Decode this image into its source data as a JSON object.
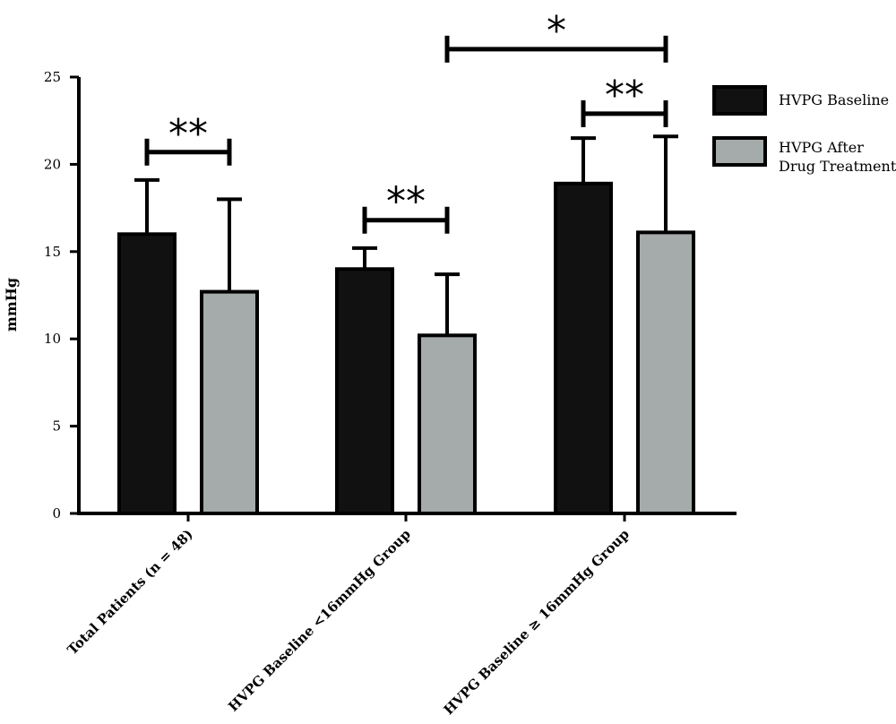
{
  "chart_data": {
    "type": "bar",
    "title": "",
    "xlabel": "",
    "ylabel": "mmHg",
    "ylim": [
      0,
      25
    ],
    "yticks": [
      0,
      5,
      10,
      15,
      20,
      25
    ],
    "categories": [
      "Total Patients (n = 48)",
      "HVPG Baseline <16mmHg Group",
      "HVPG Baseline ≥ 16mmHg Group"
    ],
    "series": [
      {
        "name": "HVPG Baseline",
        "values": [
          16.0,
          14.0,
          18.9
        ],
        "error": [
          3.1,
          1.2,
          2.6
        ],
        "color": "#111111"
      },
      {
        "name": "HVPG After Drug Treatment",
        "values": [
          12.7,
          10.2,
          16.1
        ],
        "error": [
          5.3,
          3.5,
          5.5
        ],
        "color": "#a5aaab"
      }
    ],
    "legend": {
      "position": "top-right",
      "entries": [
        {
          "label_lines": [
            "HVPG Baseline"
          ]
        },
        {
          "label_lines": [
            "HVPG After",
            "Drug Treatment"
          ]
        }
      ]
    },
    "significance": [
      {
        "label": "**",
        "category": 0,
        "from_series": 0,
        "to_series": 1,
        "at": 20.7
      },
      {
        "label": "**",
        "category": 1,
        "from_series": 0,
        "to_series": 1,
        "at": 16.8
      },
      {
        "label": "**",
        "category": 2,
        "from_series": 0,
        "to_series": 1,
        "at": 22.9
      },
      {
        "label": "*",
        "category_from": 1,
        "category_to": 2,
        "series": 1,
        "at": 26.6
      }
    ],
    "grid": false
  }
}
